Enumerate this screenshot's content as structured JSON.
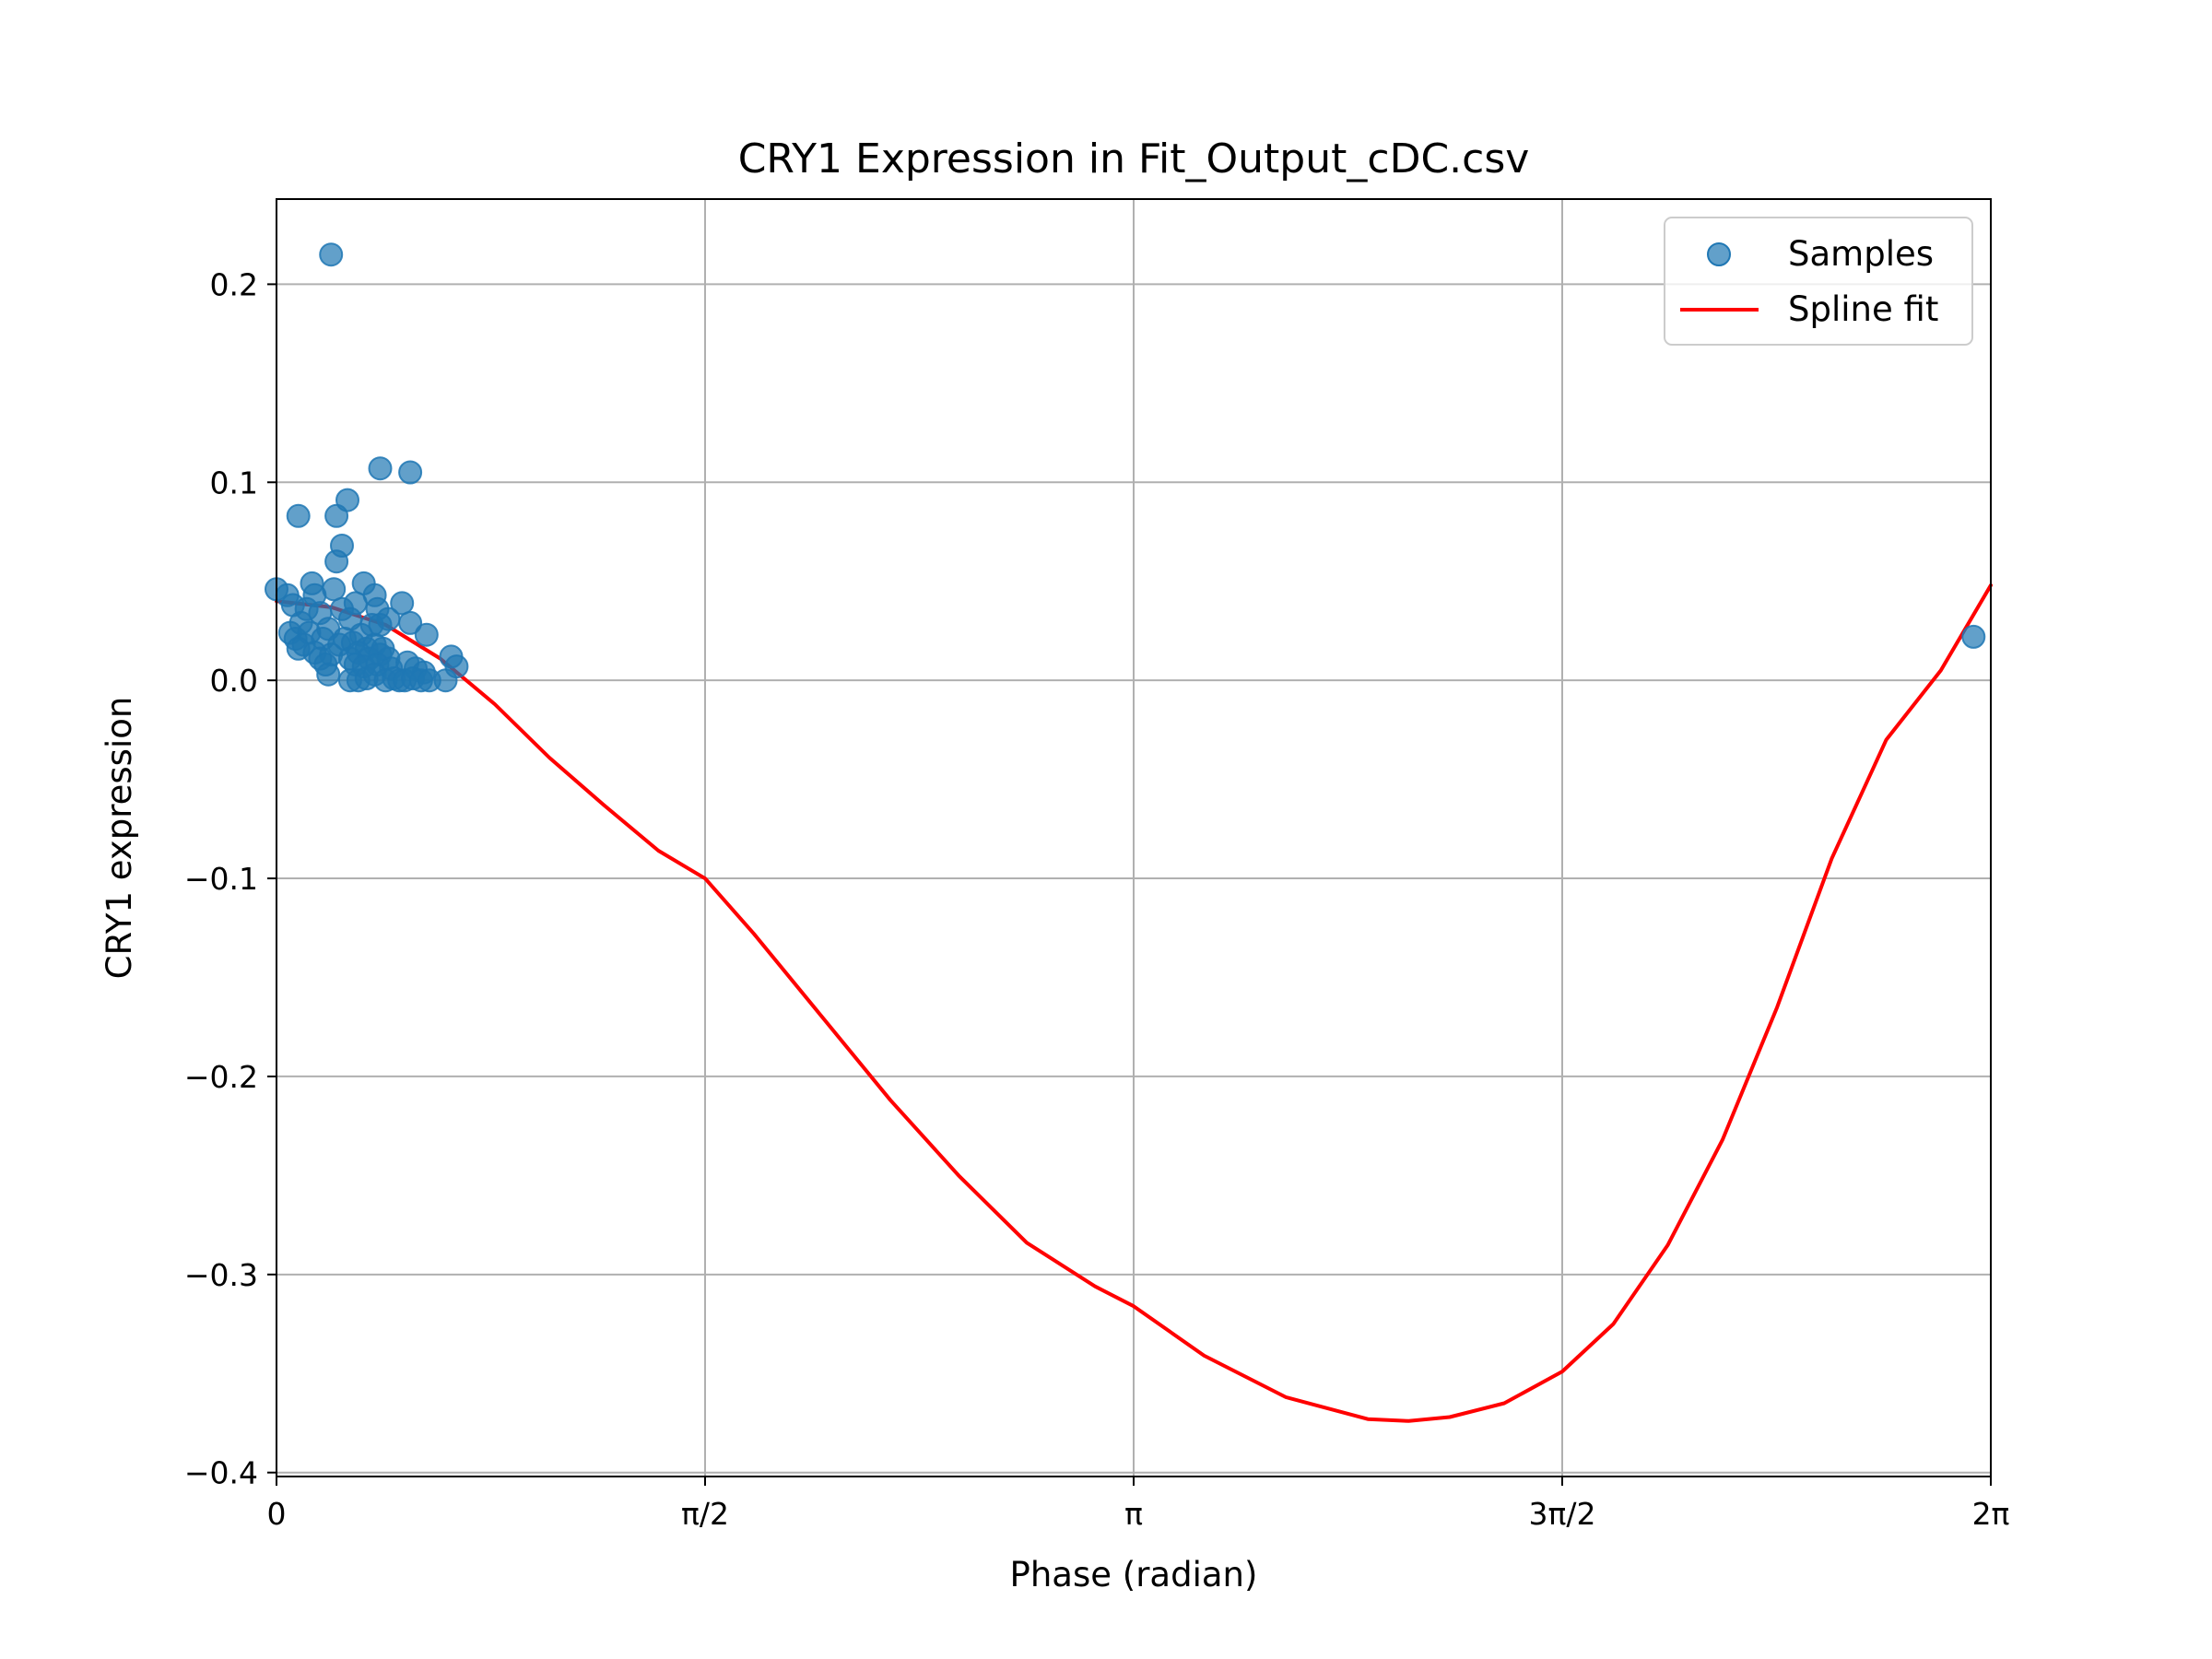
{
  "chart_data": {
    "type": "scatter",
    "title": "CRY1 Expression in Fit_Output_cDC.csv",
    "xlabel": "Phase (radian)",
    "ylabel": "CRY1 expression",
    "xlim": [
      0,
      6.2832
    ],
    "ylim": [
      -0.402,
      0.243
    ],
    "grid": true,
    "legend_position": "top-right",
    "x_ticks": [
      {
        "value": 0,
        "label": "0"
      },
      {
        "value": 1.5708,
        "label": "π/2"
      },
      {
        "value": 3.1416,
        "label": "π"
      },
      {
        "value": 4.7124,
        "label": "3π/2"
      },
      {
        "value": 6.2832,
        "label": "2π"
      }
    ],
    "y_ticks": [
      {
        "value": 0.2,
        "label": "0.2"
      },
      {
        "value": 0.1,
        "label": "0.1"
      },
      {
        "value": 0.0,
        "label": "0.0"
      },
      {
        "value": -0.1,
        "label": "−0.1"
      },
      {
        "value": -0.2,
        "label": "−0.2"
      },
      {
        "value": -0.3,
        "label": "−0.3"
      },
      {
        "value": -0.4,
        "label": "−0.4"
      }
    ],
    "series": [
      {
        "name": "Samples",
        "type": "scatter",
        "color": "#1f77b4",
        "points": [
          [
            0.2,
            0.215
          ],
          [
            0.38,
            0.107
          ],
          [
            0.49,
            0.105
          ],
          [
            0.08,
            0.083
          ],
          [
            0.22,
            0.083
          ],
          [
            0.26,
            0.091
          ],
          [
            0.24,
            0.068
          ],
          [
            0.22,
            0.06
          ],
          [
            0.13,
            0.049
          ],
          [
            0.32,
            0.049
          ],
          [
            0.21,
            0.046
          ],
          [
            0.36,
            0.043
          ],
          [
            0.0,
            0.046
          ],
          [
            0.04,
            0.043
          ],
          [
            0.14,
            0.043
          ],
          [
            0.06,
            0.038
          ],
          [
            0.11,
            0.036
          ],
          [
            0.16,
            0.034
          ],
          [
            0.24,
            0.036
          ],
          [
            0.29,
            0.039
          ],
          [
            0.37,
            0.036
          ],
          [
            0.46,
            0.039
          ],
          [
            0.27,
            0.031
          ],
          [
            0.35,
            0.028
          ],
          [
            0.41,
            0.031
          ],
          [
            0.49,
            0.029
          ],
          [
            0.09,
            0.029
          ],
          [
            0.19,
            0.026
          ],
          [
            0.25,
            0.021
          ],
          [
            0.31,
            0.023
          ],
          [
            0.38,
            0.028
          ],
          [
            0.55,
            0.023
          ],
          [
            0.05,
            0.024
          ],
          [
            0.07,
            0.021
          ],
          [
            0.1,
            0.018
          ],
          [
            0.12,
            0.024
          ],
          [
            0.17,
            0.021
          ],
          [
            0.23,
            0.018
          ],
          [
            0.28,
            0.019
          ],
          [
            0.33,
            0.016
          ],
          [
            0.36,
            0.018
          ],
          [
            0.39,
            0.016
          ],
          [
            0.08,
            0.016
          ],
          [
            0.14,
            0.014
          ],
          [
            0.2,
            0.013
          ],
          [
            0.27,
            0.011
          ],
          [
            0.3,
            0.014
          ],
          [
            0.34,
            0.011
          ],
          [
            0.38,
            0.013
          ],
          [
            0.41,
            0.011
          ],
          [
            0.16,
            0.011
          ],
          [
            0.18,
            0.008
          ],
          [
            0.29,
            0.008
          ],
          [
            0.32,
            0.007
          ],
          [
            0.37,
            0.008
          ],
          [
            0.42,
            0.006
          ],
          [
            0.48,
            0.009
          ],
          [
            0.51,
            0.006
          ],
          [
            0.54,
            0.004
          ],
          [
            0.64,
            0.012
          ],
          [
            0.66,
            0.007
          ],
          [
            0.19,
            0.003
          ],
          [
            0.27,
            0.0
          ],
          [
            0.3,
            0.0
          ],
          [
            0.33,
            0.001
          ],
          [
            0.36,
            0.003
          ],
          [
            0.4,
            0.0
          ],
          [
            0.43,
            0.001
          ],
          [
            0.45,
            0.0
          ],
          [
            0.47,
            0.0
          ],
          [
            0.5,
            0.001
          ],
          [
            0.53,
            0.0
          ],
          [
            0.56,
            0.0
          ],
          [
            0.62,
            0.0
          ],
          [
            6.22,
            0.022
          ]
        ]
      },
      {
        "name": "Spline fit",
        "type": "line",
        "color": "#ff0000",
        "points": [
          [
            0.0,
            0.04
          ],
          [
            0.2,
            0.037
          ],
          [
            0.4,
            0.028
          ],
          [
            0.6,
            0.011
          ],
          [
            0.8,
            -0.012
          ],
          [
            1.0,
            -0.039
          ],
          [
            1.2,
            -0.063
          ],
          [
            1.4,
            -0.086
          ],
          [
            1.5708,
            -0.1
          ],
          [
            1.75,
            -0.128
          ],
          [
            2.0,
            -0.17
          ],
          [
            2.25,
            -0.212
          ],
          [
            2.5,
            -0.25
          ],
          [
            2.75,
            -0.284
          ],
          [
            3.0,
            -0.306
          ],
          [
            3.1416,
            -0.316
          ],
          [
            3.4,
            -0.341
          ],
          [
            3.7,
            -0.362
          ],
          [
            4.0,
            -0.373
          ],
          [
            4.15,
            -0.374
          ],
          [
            4.3,
            -0.372
          ],
          [
            4.5,
            -0.365
          ],
          [
            4.7124,
            -0.349
          ],
          [
            4.9,
            -0.325
          ],
          [
            5.1,
            -0.285
          ],
          [
            5.3,
            -0.232
          ],
          [
            5.5,
            -0.165
          ],
          [
            5.7,
            -0.09
          ],
          [
            5.9,
            -0.03
          ],
          [
            6.1,
            0.005
          ],
          [
            6.2832,
            0.048
          ]
        ]
      }
    ]
  }
}
